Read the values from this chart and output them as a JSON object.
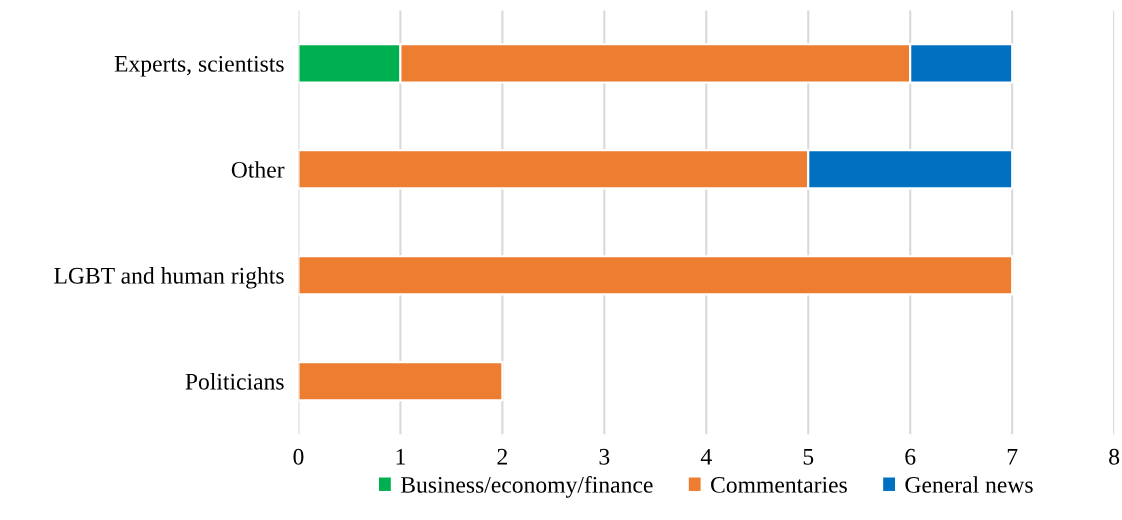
{
  "chart_data": {
    "type": "bar",
    "orientation": "horizontal",
    "stacked": true,
    "categories": [
      "Experts, scientists",
      "Other",
      "LGBT and human rights",
      "Politicians"
    ],
    "series": [
      {
        "name": "Business/economy/finance",
        "color": "#00b050",
        "values": [
          1,
          null,
          null,
          null
        ]
      },
      {
        "name": "Commentaries",
        "color": "#ed7d31",
        "values": [
          5,
          5,
          7,
          2
        ]
      },
      {
        "name": "General news",
        "color": "#0070c0",
        "values": [
          1,
          2,
          null,
          null
        ]
      }
    ],
    "xlim": [
      0,
      8
    ],
    "xticks": [
      0,
      1,
      2,
      3,
      4,
      5,
      6,
      7,
      8
    ],
    "grid": "x",
    "legend": "bottom"
  }
}
